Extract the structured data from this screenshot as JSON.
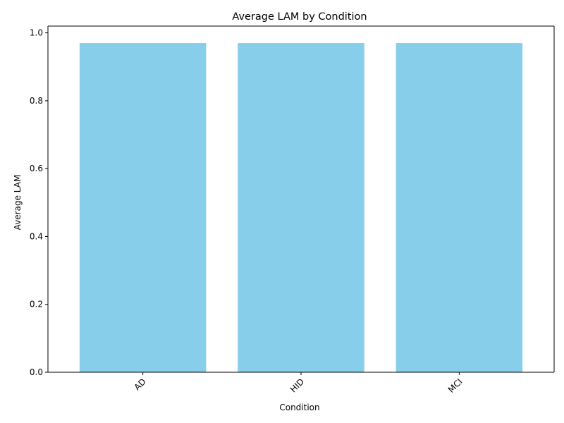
{
  "chart_data": {
    "type": "bar",
    "title": "Average LAM by Condition",
    "xlabel": "Condition",
    "ylabel": "Average LAM",
    "categories": [
      "AD",
      "HID",
      "MCI"
    ],
    "values": [
      0.97,
      0.97,
      0.97
    ],
    "ylim": [
      0,
      1.02
    ],
    "yticks": [
      0.0,
      0.2,
      0.4,
      0.6,
      0.8,
      1.0
    ],
    "ytick_labels": [
      "0.0",
      "0.2",
      "0.4",
      "0.6",
      "0.8",
      "1.0"
    ],
    "xtick_rotation": "45 degrees",
    "grid": false,
    "legend": "none",
    "colors": {
      "bar": "#87CEEB",
      "axis": "#000000",
      "background": "#ffffff"
    }
  }
}
